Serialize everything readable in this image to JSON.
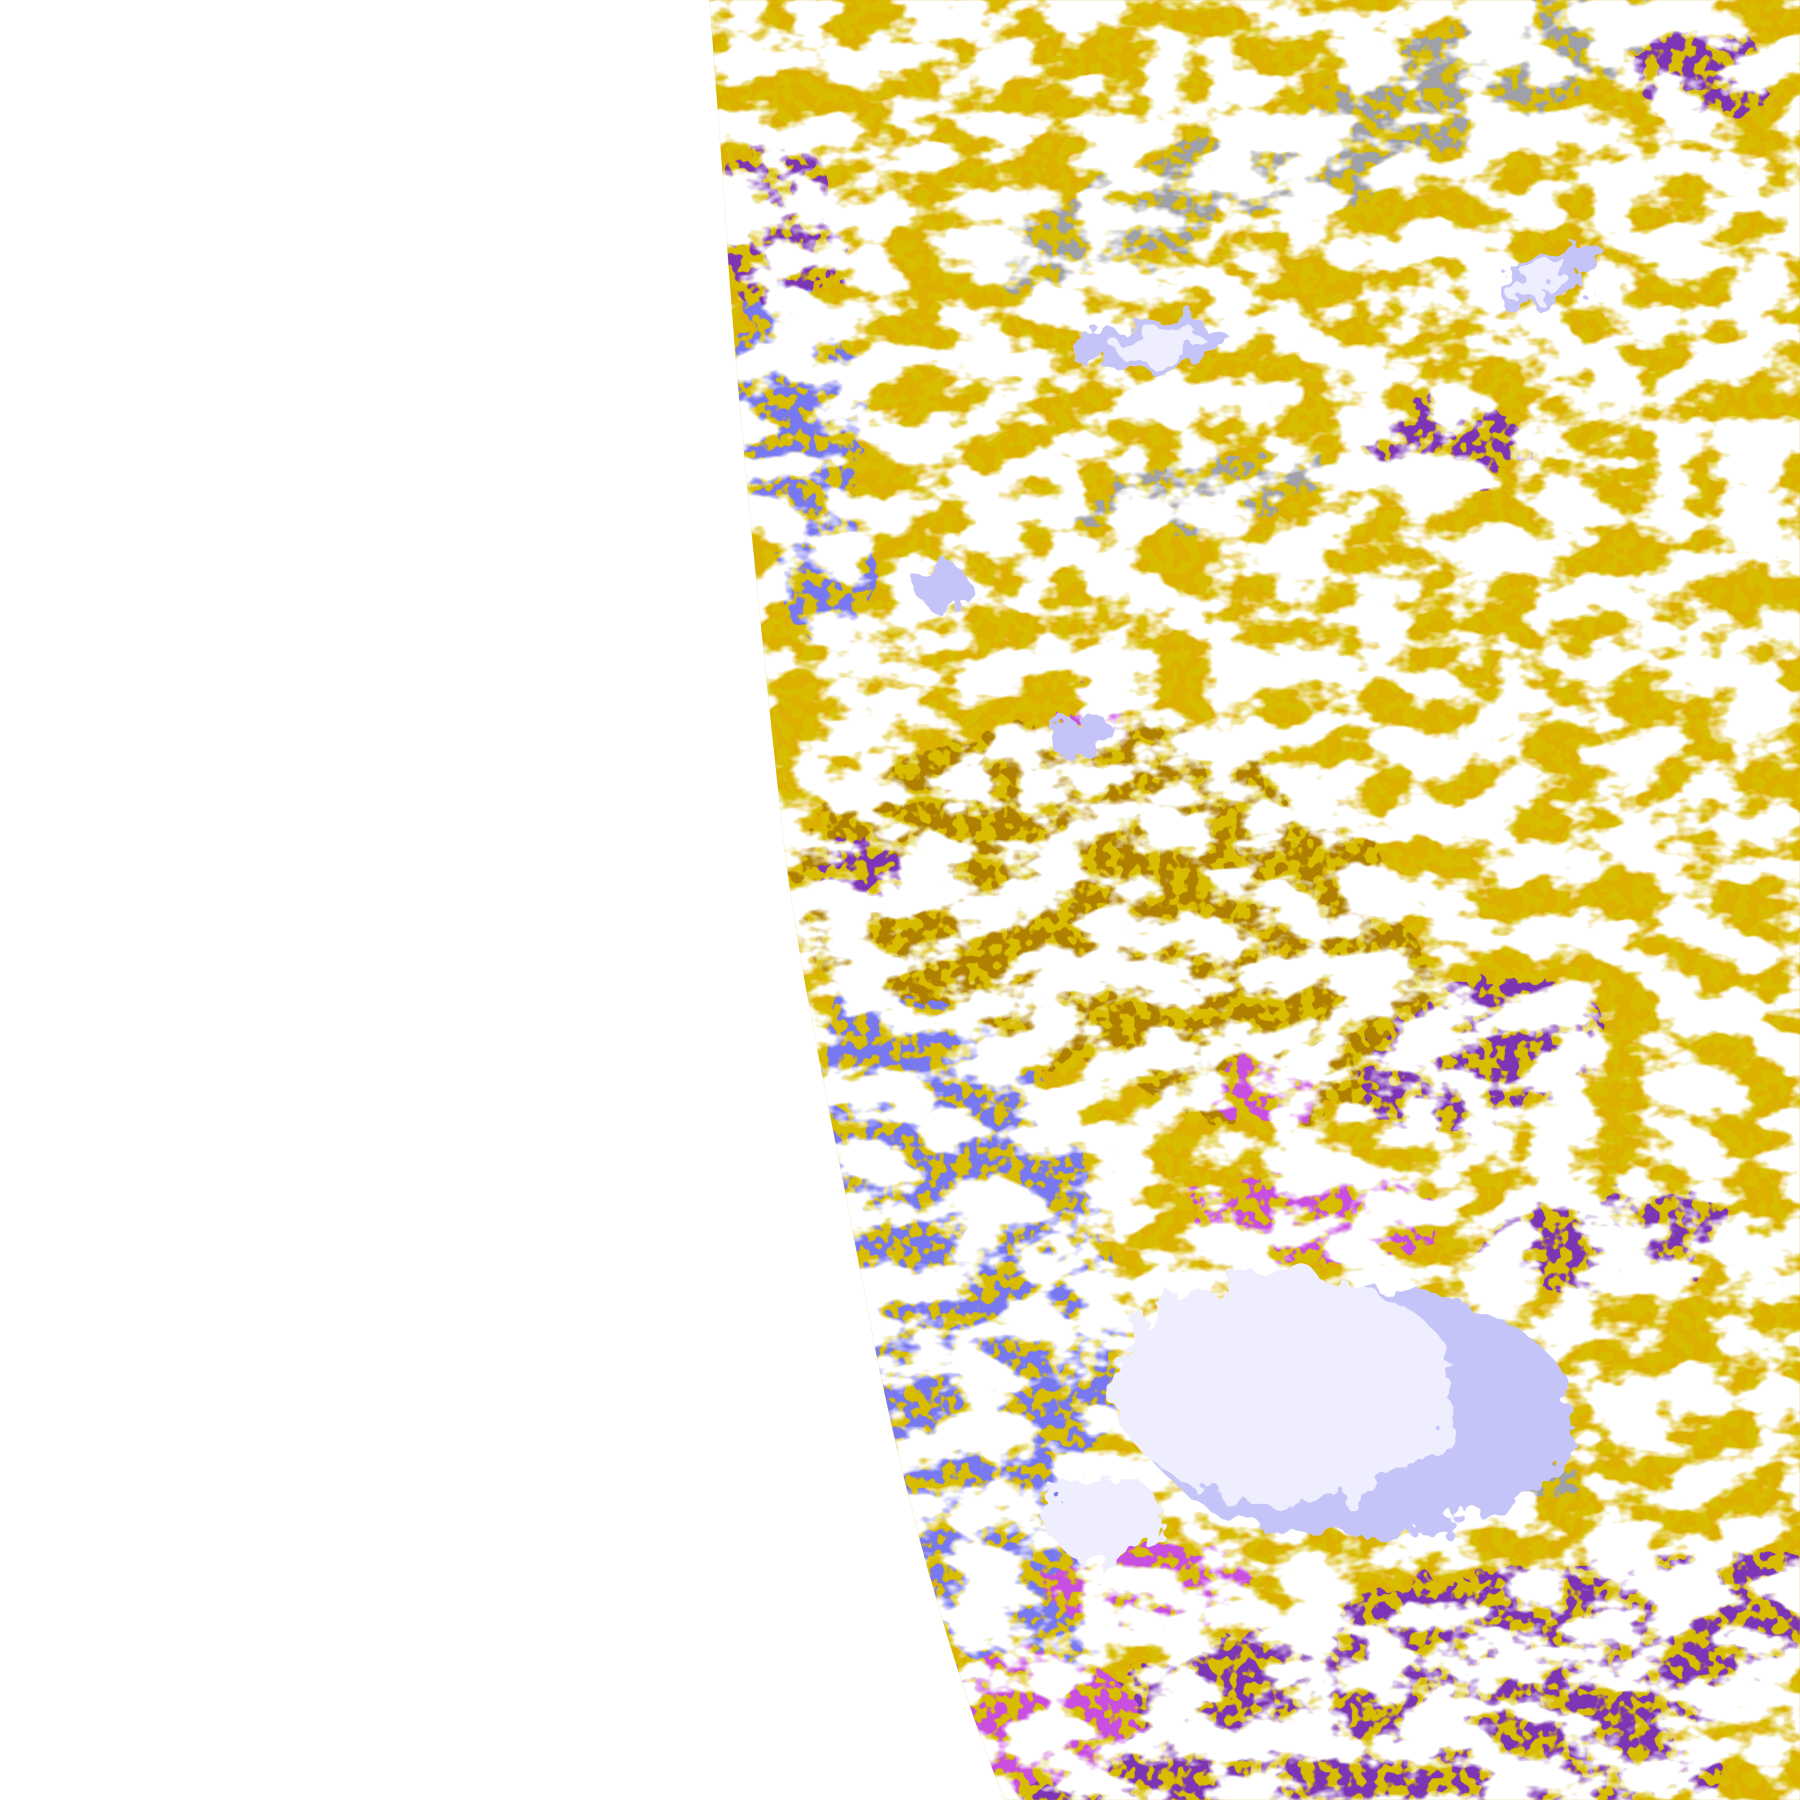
{
  "map": {
    "background": "#ffffff",
    "classes": [
      {
        "id": "gold",
        "color": "#dcb000"
      },
      {
        "id": "dark-gold",
        "color": "#b08000"
      },
      {
        "id": "purple",
        "color": "#7b35b5"
      },
      {
        "id": "blue-violet",
        "color": "#7878f0"
      },
      {
        "id": "magenta",
        "color": "#c850e0"
      },
      {
        "id": "lavender",
        "color": "#c4c4f8"
      },
      {
        "id": "pale",
        "color": "#eeeeff"
      },
      {
        "id": "gray",
        "color": "#a0a0a8"
      }
    ]
  }
}
